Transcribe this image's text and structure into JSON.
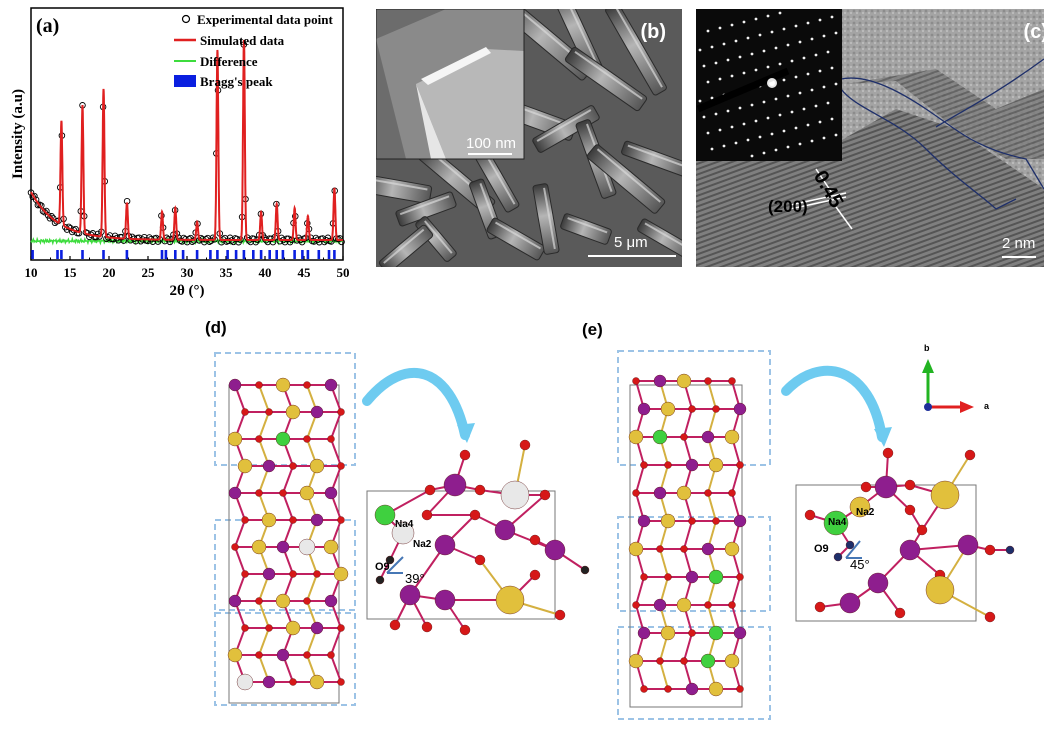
{
  "panel_a": {
    "label": "(a)",
    "ylabel": "Intensity (a.u)",
    "xlabel": "2θ (°)",
    "legend": [
      "Experimental data point",
      "Simulated data",
      "Difference",
      "Bragg's peak"
    ],
    "chart_data": {
      "type": "line",
      "xlim": [
        10,
        50
      ],
      "xticks": [
        "10",
        "15",
        "20",
        "25",
        "30",
        "35",
        "40",
        "45",
        "50"
      ],
      "peaks": [
        {
          "x": 13.9,
          "h": 0.52
        },
        {
          "x": 16.6,
          "h": 0.64
        },
        {
          "x": 19.3,
          "h": 0.74
        },
        {
          "x": 22.3,
          "h": 0.18
        },
        {
          "x": 26.8,
          "h": 0.14
        },
        {
          "x": 28.5,
          "h": 0.16
        },
        {
          "x": 31.3,
          "h": 0.09
        },
        {
          "x": 33.9,
          "h": 0.95
        },
        {
          "x": 37.3,
          "h": 1.0
        },
        {
          "x": 39.5,
          "h": 0.14
        },
        {
          "x": 41.5,
          "h": 0.18
        },
        {
          "x": 43.8,
          "h": 0.16
        },
        {
          "x": 45.5,
          "h": 0.12
        },
        {
          "x": 48.9,
          "h": 0.26
        }
      ],
      "bragg_positions": [
        10.2,
        13.4,
        13.9,
        16.6,
        19.3,
        22.3,
        26.8,
        27.3,
        28.5,
        29.5,
        31.3,
        33.0,
        33.9,
        35.2,
        36.3,
        37.3,
        38.5,
        39.5,
        40.6,
        41.5,
        42.3,
        43.8,
        44.8,
        45.5,
        46.9,
        48.2,
        48.9
      ]
    }
  },
  "panel_b": {
    "label": "(b)",
    "inset_scale": "100 nm",
    "main_scale": "5 μm"
  },
  "panel_c": {
    "label": "(c)",
    "d_spacing": "0.45",
    "plane": "(200)",
    "scale": "2 nm"
  },
  "panel_d": {
    "label": "(d)",
    "atoms": [
      "Na4",
      "Na2",
      "O9"
    ],
    "angle": "39°"
  },
  "panel_e": {
    "label": "(e)",
    "atoms": [
      "Na4",
      "Na2",
      "O9"
    ],
    "angle": "45°",
    "axis_b": "b",
    "axis_a": "a"
  }
}
